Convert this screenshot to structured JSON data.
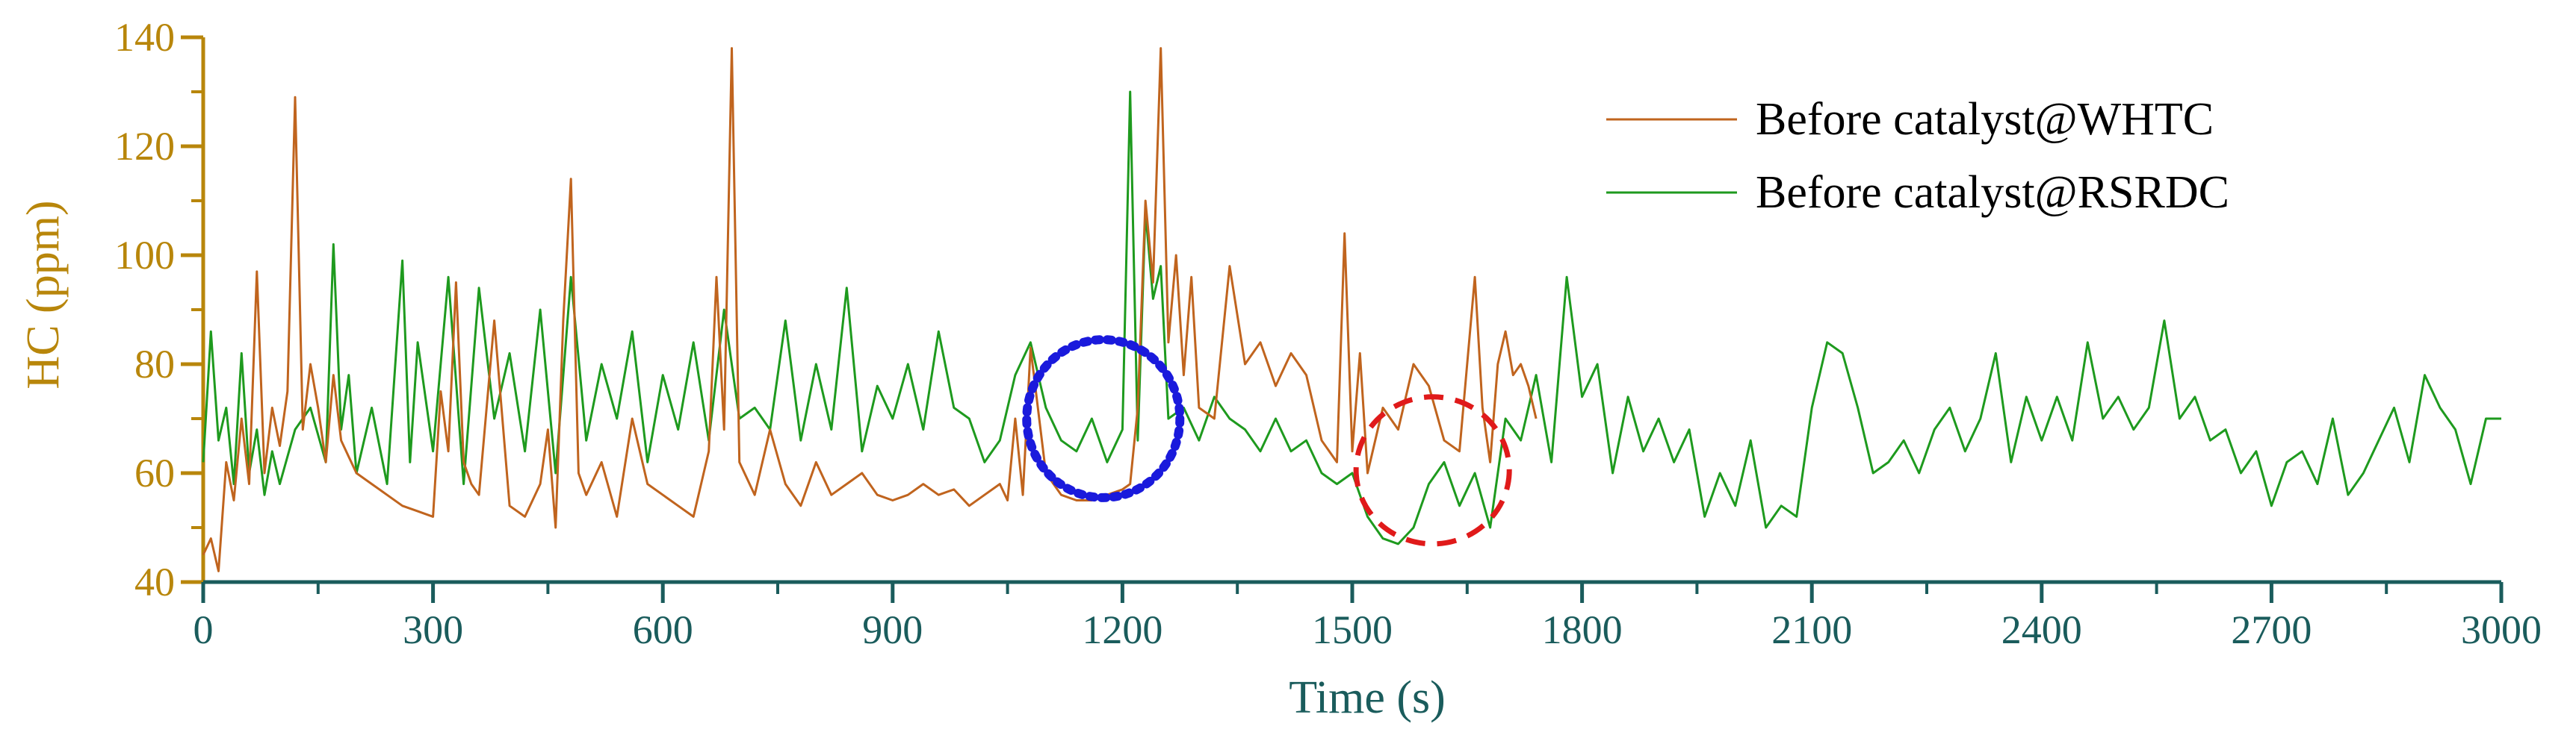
{
  "chart_data": {
    "type": "line",
    "xlabel": "Time (s)",
    "ylabel": "HC (ppm)",
    "xlim": [
      0,
      3000
    ],
    "ylim": [
      40,
      140
    ],
    "xticks": [
      0,
      300,
      600,
      900,
      1200,
      1500,
      1800,
      2100,
      2400,
      2700,
      3000
    ],
    "yticks": [
      40,
      60,
      80,
      100,
      120,
      140
    ],
    "legend_position": "top-right",
    "grid": false,
    "colors": {
      "y_axis": "#b8860b",
      "x_axis": "#1a5c5c",
      "whtc": "#c0641e",
      "rsrdc": "#1e9a1e",
      "blue_circle": "#1a1adc",
      "red_circle": "#e01a1a"
    },
    "series": [
      {
        "name": "Before catalyst@WHTC",
        "x": [
          0,
          10,
          20,
          30,
          40,
          50,
          60,
          70,
          80,
          90,
          100,
          110,
          120,
          130,
          140,
          150,
          160,
          170,
          180,
          190,
          200,
          220,
          240,
          260,
          280,
          300,
          310,
          320,
          330,
          340,
          350,
          360,
          380,
          400,
          420,
          440,
          450,
          460,
          470,
          480,
          490,
          500,
          520,
          540,
          560,
          580,
          600,
          620,
          640,
          660,
          670,
          680,
          690,
          700,
          720,
          740,
          760,
          780,
          800,
          820,
          840,
          860,
          880,
          900,
          920,
          940,
          960,
          980,
          1000,
          1020,
          1040,
          1050,
          1060,
          1070,
          1080,
          1100,
          1120,
          1140,
          1160,
          1180,
          1200,
          1210,
          1220,
          1230,
          1240,
          1250,
          1260,
          1270,
          1280,
          1290,
          1300,
          1320,
          1340,
          1360,
          1380,
          1400,
          1420,
          1440,
          1460,
          1480,
          1490,
          1500,
          1510,
          1520,
          1540,
          1560,
          1580,
          1600,
          1620,
          1640,
          1660,
          1670,
          1680,
          1690,
          1700,
          1710,
          1720,
          1730,
          1740
        ],
        "values": [
          45,
          48,
          42,
          62,
          55,
          70,
          58,
          97,
          60,
          72,
          65,
          75,
          129,
          68,
          80,
          72,
          62,
          78,
          66,
          63,
          60,
          58,
          56,
          54,
          53,
          52,
          75,
          64,
          95,
          62,
          58,
          56,
          88,
          54,
          52,
          58,
          68,
          50,
          88,
          114,
          60,
          56,
          62,
          52,
          70,
          58,
          56,
          54,
          52,
          64,
          96,
          68,
          138,
          62,
          56,
          68,
          58,
          54,
          62,
          56,
          58,
          60,
          56,
          55,
          56,
          58,
          56,
          57,
          54,
          56,
          58,
          55,
          70,
          56,
          83,
          60,
          56,
          55,
          55,
          56,
          57,
          58,
          72,
          110,
          95,
          138,
          84,
          100,
          78,
          96,
          72,
          70,
          98,
          80,
          84,
          76,
          82,
          78,
          66,
          62,
          104,
          64,
          82,
          60,
          72,
          68,
          80,
          76,
          66,
          64,
          96,
          72,
          62,
          80,
          86,
          78,
          80,
          76,
          70
        ]
      },
      {
        "name": "Before catalyst@RSRDC",
        "x": [
          0,
          10,
          20,
          30,
          40,
          50,
          60,
          70,
          80,
          90,
          100,
          120,
          140,
          160,
          170,
          180,
          190,
          200,
          220,
          240,
          260,
          270,
          280,
          300,
          320,
          340,
          360,
          380,
          400,
          420,
          440,
          460,
          480,
          500,
          520,
          540,
          560,
          580,
          600,
          620,
          640,
          660,
          680,
          700,
          720,
          740,
          760,
          780,
          800,
          820,
          840,
          860,
          880,
          900,
          920,
          940,
          960,
          980,
          1000,
          1020,
          1040,
          1060,
          1080,
          1100,
          1120,
          1140,
          1160,
          1180,
          1200,
          1210,
          1220,
          1230,
          1240,
          1250,
          1260,
          1280,
          1300,
          1320,
          1340,
          1360,
          1380,
          1400,
          1420,
          1440,
          1460,
          1480,
          1500,
          1520,
          1540,
          1560,
          1580,
          1600,
          1620,
          1640,
          1660,
          1680,
          1700,
          1720,
          1740,
          1760,
          1780,
          1800,
          1820,
          1840,
          1860,
          1880,
          1900,
          1920,
          1940,
          1960,
          1980,
          2000,
          2020,
          2040,
          2060,
          2080,
          2100,
          2120,
          2140,
          2160,
          2180,
          2200,
          2220,
          2240,
          2260,
          2280,
          2300,
          2320,
          2340,
          2360,
          2380,
          2400,
          2420,
          2440,
          2460,
          2480,
          2500,
          2520,
          2540,
          2560,
          2580,
          2600,
          2620,
          2640,
          2660,
          2680,
          2700,
          2720,
          2740,
          2760,
          2780,
          2800,
          2820,
          2840,
          2860,
          2880,
          2900,
          2920,
          2940,
          2960,
          2980,
          3000
        ],
        "values": [
          62,
          86,
          66,
          72,
          58,
          82,
          60,
          68,
          56,
          64,
          58,
          68,
          72,
          62,
          102,
          68,
          78,
          60,
          72,
          58,
          99,
          62,
          84,
          64,
          96,
          58,
          94,
          70,
          82,
          64,
          90,
          60,
          96,
          66,
          80,
          70,
          86,
          62,
          78,
          68,
          84,
          66,
          90,
          70,
          72,
          68,
          88,
          66,
          80,
          68,
          94,
          64,
          76,
          70,
          80,
          68,
          86,
          72,
          70,
          62,
          66,
          78,
          84,
          72,
          66,
          64,
          70,
          62,
          68,
          130,
          66,
          108,
          92,
          98,
          70,
          72,
          66,
          74,
          70,
          68,
          64,
          70,
          64,
          66,
          60,
          58,
          60,
          52,
          48,
          47,
          50,
          58,
          62,
          54,
          60,
          50,
          70,
          66,
          78,
          62,
          96,
          74,
          80,
          60,
          74,
          64,
          70,
          62,
          68,
          52,
          60,
          54,
          66,
          50,
          54,
          52,
          72,
          84,
          82,
          72,
          60,
          62,
          66,
          60,
          68,
          72,
          64,
          70,
          82,
          62,
          74,
          66,
          74,
          66,
          84,
          70,
          74,
          68,
          72,
          88,
          70,
          74,
          66,
          68,
          60,
          64,
          54,
          62,
          64,
          58,
          70,
          56,
          60,
          66,
          72,
          62,
          78,
          72,
          68,
          58,
          70,
          70
        ]
      }
    ]
  }
}
